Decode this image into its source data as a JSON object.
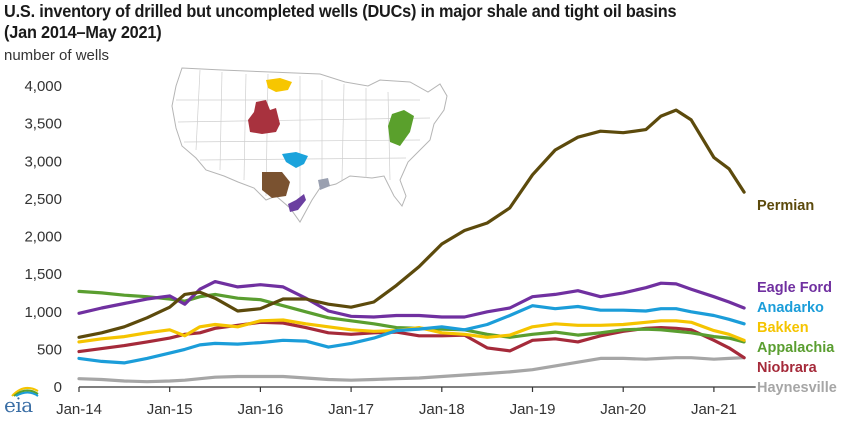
{
  "header": {
    "title_line1": "U.S. inventory of drilled but uncompleted wells (DUCs) in major shale and tight oil basins",
    "title_line2": "(Jan 2014–May 2021)",
    "y_unit": "number of wells"
  },
  "logo": {
    "text": "eia"
  },
  "map_inset": {
    "description": "Map of contiguous U.S. with shale basins highlighted",
    "regions": [
      {
        "name": "Bakken",
        "color": "#f7c600"
      },
      {
        "name": "Niobrara",
        "color": "#a8323e"
      },
      {
        "name": "Anadarko",
        "color": "#1ba3dc"
      },
      {
        "name": "Permian",
        "color": "#7a5230"
      },
      {
        "name": "Haynesville",
        "color": "#9aa0b0"
      },
      {
        "name": "Eagle Ford",
        "color": "#6b3fa0"
      },
      {
        "name": "Appalachia",
        "color": "#5aa02c"
      }
    ]
  },
  "chart_data": {
    "type": "line",
    "title": "U.S. inventory of drilled but uncompleted wells (DUCs) in major shale and tight oil basins (Jan 2014–May 2021)",
    "xlabel": "",
    "ylabel": "number of wells",
    "ylim": [
      0,
      4000
    ],
    "yticks": [
      0,
      500,
      1000,
      1500,
      2000,
      2500,
      3000,
      3500,
      4000
    ],
    "ytick_labels": [
      "0",
      "500",
      "1,000",
      "1,500",
      "2,000",
      "2,500",
      "3,000",
      "3,500",
      "4,000"
    ],
    "xticks": [
      "Jan-14",
      "Jan-15",
      "Jan-16",
      "Jan-17",
      "Jan-18",
      "Jan-19",
      "Jan-20",
      "Jan-21"
    ],
    "xlim_months": [
      0,
      89
    ],
    "grid": false,
    "legend": "right-inline",
    "x_months": [
      0,
      3,
      6,
      9,
      12,
      14,
      16,
      18,
      21,
      24,
      27,
      30,
      33,
      36,
      39,
      42,
      45,
      48,
      51,
      54,
      57,
      60,
      63,
      66,
      69,
      72,
      75,
      77,
      79,
      81,
      84,
      86,
      88
    ],
    "series": [
      {
        "name": "Permian",
        "color": "#5c4a0c",
        "values": [
          660,
          720,
          800,
          920,
          1060,
          1230,
          1260,
          1180,
          1010,
          1040,
          1170,
          1170,
          1100,
          1060,
          1130,
          1350,
          1600,
          1900,
          2080,
          2180,
          2380,
          2820,
          3150,
          3320,
          3400,
          3380,
          3420,
          3600,
          3680,
          3550,
          3050,
          2900,
          2590
        ]
      },
      {
        "name": "Eagle Ford",
        "color": "#7030a0",
        "values": [
          980,
          1050,
          1110,
          1170,
          1210,
          1100,
          1300,
          1400,
          1330,
          1360,
          1330,
          1180,
          1010,
          940,
          930,
          950,
          950,
          930,
          930,
          1000,
          1050,
          1200,
          1230,
          1280,
          1200,
          1250,
          1320,
          1380,
          1370,
          1300,
          1200,
          1130,
          1050
        ]
      },
      {
        "name": "Anadarko",
        "color": "#1b9dd9",
        "values": [
          380,
          340,
          320,
          380,
          450,
          500,
          560,
          580,
          570,
          590,
          620,
          610,
          530,
          580,
          650,
          750,
          770,
          800,
          760,
          830,
          950,
          1080,
          1040,
          1070,
          1020,
          1020,
          1010,
          1040,
          1040,
          1000,
          950,
          900,
          840
        ]
      },
      {
        "name": "Bakken",
        "color": "#f5c400",
        "values": [
          600,
          640,
          670,
          720,
          760,
          680,
          800,
          830,
          800,
          880,
          890,
          840,
          800,
          760,
          740,
          750,
          790,
          720,
          700,
          660,
          690,
          800,
          840,
          820,
          820,
          830,
          860,
          880,
          880,
          860,
          750,
          700,
          620
        ]
      },
      {
        "name": "Appalachia",
        "color": "#5a9e30",
        "values": [
          1270,
          1250,
          1220,
          1200,
          1170,
          1140,
          1200,
          1230,
          1180,
          1160,
          1080,
          1000,
          920,
          880,
          840,
          790,
          780,
          770,
          760,
          700,
          660,
          700,
          730,
          690,
          720,
          760,
          770,
          760,
          740,
          720,
          670,
          650,
          600
        ]
      },
      {
        "name": "Niobrara",
        "color": "#a52a3a",
        "values": [
          470,
          510,
          550,
          600,
          650,
          700,
          720,
          780,
          820,
          860,
          850,
          790,
          720,
          700,
          720,
          730,
          680,
          680,
          690,
          520,
          480,
          620,
          640,
          600,
          680,
          740,
          780,
          790,
          780,
          760,
          620,
          520,
          390
        ]
      },
      {
        "name": "Haynesville",
        "color": "#a6a6a6",
        "values": [
          110,
          100,
          80,
          70,
          80,
          90,
          110,
          130,
          140,
          140,
          140,
          120,
          100,
          90,
          100,
          110,
          120,
          140,
          160,
          180,
          200,
          230,
          280,
          330,
          380,
          380,
          370,
          380,
          390,
          390,
          370,
          380,
          390
        ]
      }
    ]
  }
}
